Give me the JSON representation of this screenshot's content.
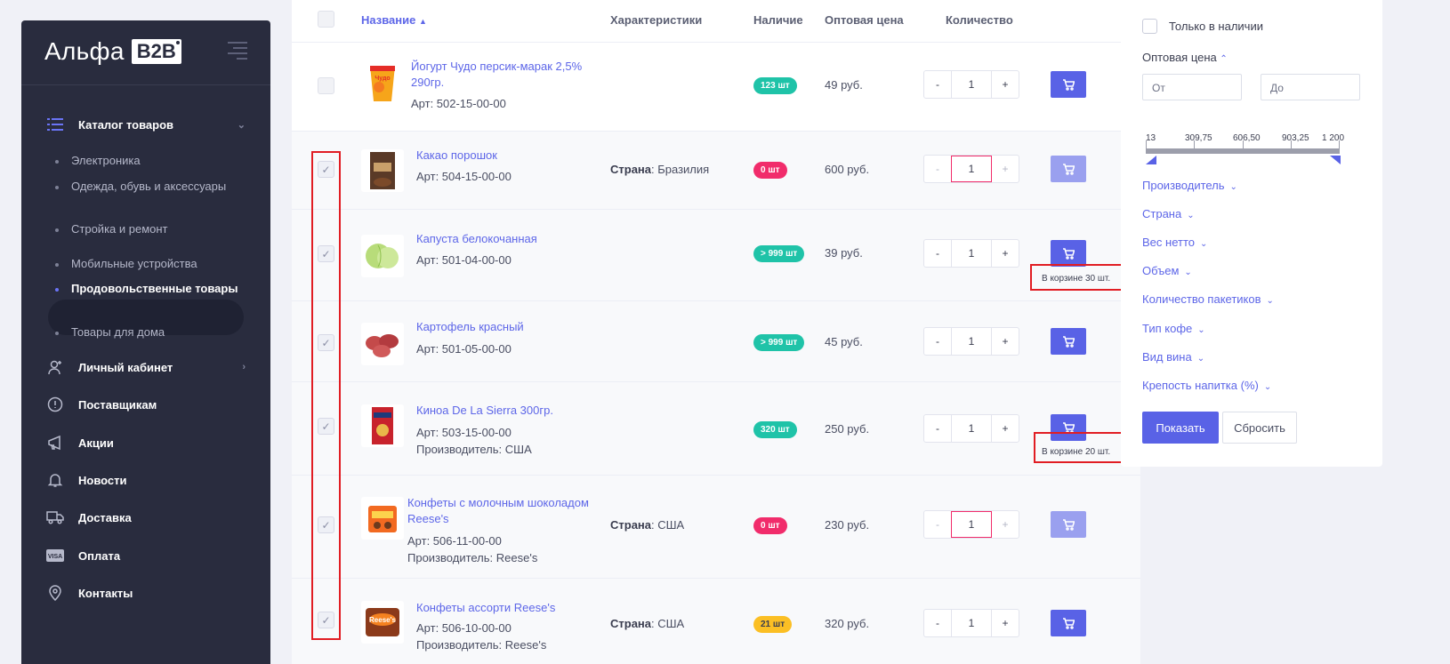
{
  "sidebar": {
    "logo_text": "Альфа",
    "logo_badge": "B2B",
    "menu": [
      {
        "label": "Каталог товаров",
        "icon": "list-icon"
      },
      {
        "label": "Личный кабинет",
        "icon": "user-icon"
      },
      {
        "label": "Поставщикам",
        "icon": "alert-circle-icon"
      },
      {
        "label": "Акции",
        "icon": "megaphone-icon"
      },
      {
        "label": "Новости",
        "icon": "bell-icon"
      },
      {
        "label": "Доставка",
        "icon": "truck-icon"
      },
      {
        "label": "Оплата",
        "icon": "visa-card-icon"
      },
      {
        "label": "Контакты",
        "icon": "location-pin-icon"
      }
    ],
    "catalog_sub": [
      "Электроника",
      "Одежда, обувь и аксессуары",
      "Стройка и ремонт",
      "Мобильные устройства",
      "Продовольственные товары",
      "Товары для дома"
    ]
  },
  "table": {
    "headers": {
      "name": "Название",
      "chars": "Характеристики",
      "availability": "Наличие",
      "price": "Оптовая цена",
      "qty": "Количество"
    },
    "rows": [
      {
        "name": "Йогурт Чудо персик-марак 2,5% 290гр.",
        "art": "Арт: 502-15-00-00",
        "maker": "",
        "country_label": "",
        "country": "",
        "stock": "123 шт",
        "price": "49 руб.",
        "qty": "1",
        "in_cart": ""
      },
      {
        "name": "Какао порошок",
        "art": "Арт: 504-15-00-00",
        "maker": "",
        "country_label": "Страна",
        "country": ": Бразилия",
        "stock": "0 шт",
        "price": "600 руб.",
        "qty": "1",
        "in_cart": ""
      },
      {
        "name": "Капуста белокочанная",
        "art": "Арт: 501-04-00-00",
        "maker": "",
        "country_label": "",
        "country": "",
        "stock": "> 999 шт",
        "price": "39 руб.",
        "qty": "1",
        "in_cart": "В корзине 30 шт."
      },
      {
        "name": "Картофель красный",
        "art": "Арт: 501-05-00-00",
        "maker": "",
        "country_label": "",
        "country": "",
        "stock": "> 999 шт",
        "price": "45 руб.",
        "qty": "1",
        "in_cart": ""
      },
      {
        "name": "Киноа De La Sierra 300гр.",
        "art": "Арт: 503-15-00-00",
        "maker": "Производитель: США",
        "country_label": "",
        "country": "",
        "stock": "320 шт",
        "price": "250 руб.",
        "qty": "1",
        "in_cart": "В корзине 20 шт."
      },
      {
        "name": "Конфеты с молочным шоколадом Reese's",
        "art": "Арт: 506-11-00-00",
        "maker": "Производитель: Reese's",
        "country_label": "Страна",
        "country": ": США",
        "stock": "0 шт",
        "price": "230 руб.",
        "qty": "1",
        "in_cart": ""
      },
      {
        "name": "Конфеты ассорти Reese's",
        "art": "Арт: 506-10-00-00",
        "maker": "Производитель: Reese's",
        "country_label": "Страна",
        "country": ": США",
        "stock": "21 шт",
        "price": "320 руб.",
        "qty": "1",
        "in_cart": ""
      }
    ],
    "minus": "-",
    "plus": "+"
  },
  "filter": {
    "only_in_stock": "Только в наличии",
    "price_title": "Оптовая цена",
    "from_placeholder": "От",
    "to_placeholder": "До",
    "ticks": [
      "13",
      "309,75",
      "606,50",
      "903,25",
      "1 200"
    ],
    "sections": [
      "Производитель",
      "Страна",
      "Вес нетто",
      "Объем",
      "Количество пакетиков",
      "Тип кофе",
      "Вид вина",
      "Крепость напитка (%)"
    ],
    "show_btn": "Показать",
    "reset_btn": "Сбросить"
  },
  "colors": {
    "accent": "#5962e6",
    "sidebar": "#292c3e",
    "teal": "#1fc3a8",
    "pink": "#f12c6b",
    "yellow": "#fbbf24",
    "annotation": "#e11d23"
  }
}
